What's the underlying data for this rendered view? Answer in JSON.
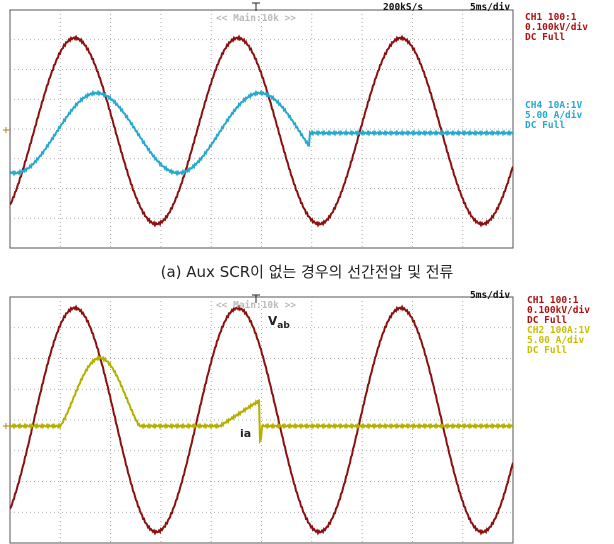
{
  "top_panel": {
    "header": "<< Main:10k >>",
    "sample_rate": "200kS/s",
    "timebase": "5ms/div",
    "ch1": [
      "CH1 100:1",
      "0.100kV/div",
      "DC   Full"
    ],
    "ch4": [
      "CH4 10A:1V",
      "5.00 A/div",
      "DC   Full"
    ]
  },
  "caption": "(a) Aux SCR이 없는 경우의 선간전압 및 전류",
  "bottom_panel": {
    "header": "<< Main:10k >>",
    "timebase": "5ms/div",
    "ch1": [
      "CH1 100:1",
      "0.100kV/div",
      "DC   Full"
    ],
    "ch2": [
      "CH2 100A:1V",
      "5.00 A/div",
      "DC   Full"
    ],
    "vab": {
      "main": "V",
      "sub": "ab"
    },
    "ia": "ia"
  }
}
